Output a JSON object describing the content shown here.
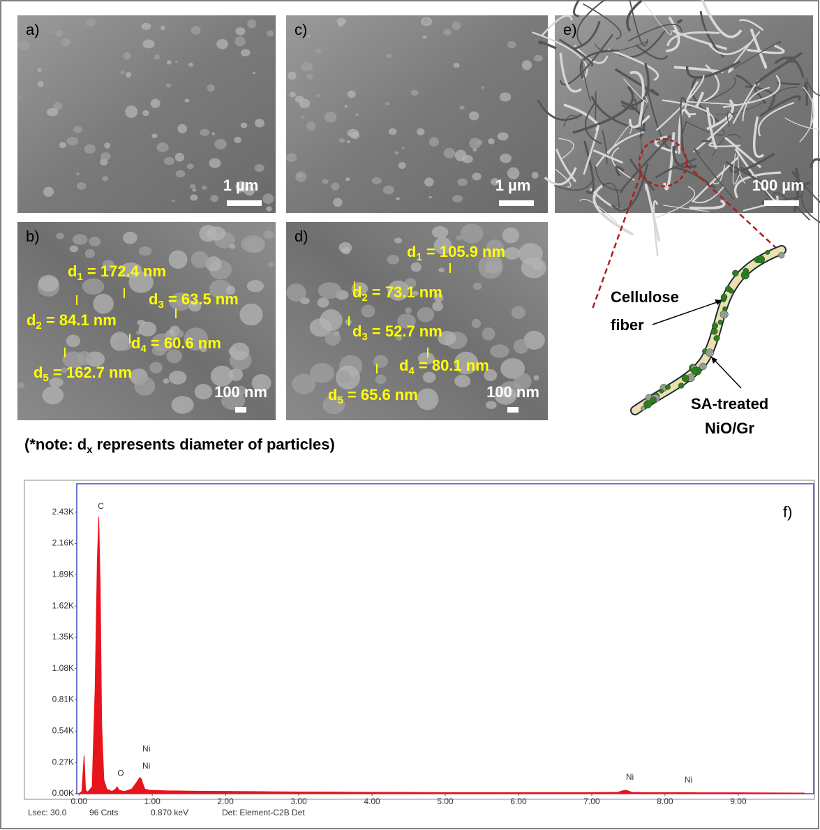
{
  "panels": [
    {
      "label": "a)",
      "scale_bar": "1 µm"
    },
    {
      "label": "b)",
      "scale_bar": "100 nm",
      "diameters": [
        {
          "symbol": "d",
          "sub": "1",
          "text": " = 172.4 nm"
        },
        {
          "symbol": "d",
          "sub": "2",
          "text": " = 84.1 nm"
        },
        {
          "symbol": "d",
          "sub": "3",
          "text": " = 63.5 nm"
        },
        {
          "symbol": "d",
          "sub": "4",
          "text": " = 60.6 nm"
        },
        {
          "symbol": "d",
          "sub": "5",
          "text": " = 162.7 nm"
        }
      ]
    },
    {
      "label": "c)",
      "scale_bar": "1 µm"
    },
    {
      "label": "d)",
      "scale_bar": "100 nm",
      "diameters": [
        {
          "symbol": "d",
          "sub": "1",
          "text": " = 105.9 nm"
        },
        {
          "symbol": "d",
          "sub": "2",
          "text": " = 73.1 nm"
        },
        {
          "symbol": "d",
          "sub": "3",
          "text": " = 52.7 nm"
        },
        {
          "symbol": "d",
          "sub": "4",
          "text": " = 80.1 nm"
        },
        {
          "symbol": "d",
          "sub": "5",
          "text": " = 65.6 nm"
        }
      ]
    },
    {
      "label": "e)",
      "scale_bar": "100 µm"
    }
  ],
  "schematic": {
    "fiber_label": [
      "Cellulose",
      "fiber"
    ],
    "particle_label": [
      "SA-treated",
      "NiO/Gr"
    ]
  },
  "note": {
    "before": "(*note: d",
    "sub": "x",
    "after": " represents diameter of particles)"
  },
  "chart_data": {
    "type": "area",
    "panel_label": "f)",
    "color": "#e8141b",
    "frame_color": "#3b4ab8",
    "x": [
      0.0,
      0.04,
      0.07,
      0.09,
      0.12,
      0.18,
      0.22,
      0.25,
      0.27,
      0.29,
      0.31,
      0.34,
      0.38,
      0.45,
      0.5,
      0.52,
      0.55,
      0.62,
      0.72,
      0.8,
      0.83,
      0.85,
      0.87,
      0.9,
      0.96,
      1.2,
      1.6,
      2.0,
      2.5,
      3.0,
      3.5,
      4.0,
      4.5,
      5.0,
      5.5,
      6.0,
      6.5,
      7.0,
      7.35,
      7.45,
      7.48,
      7.55,
      7.7,
      8.0,
      8.26,
      8.5,
      9.0,
      9.5,
      9.9
    ],
    "values": [
      0,
      20,
      330,
      30,
      15,
      60,
      900,
      2000,
      2390,
      1800,
      600,
      120,
      40,
      20,
      40,
      60,
      30,
      20,
      40,
      110,
      140,
      130,
      90,
      40,
      30,
      25,
      22,
      20,
      18,
      15,
      14,
      12,
      11,
      10,
      10,
      9,
      9,
      10,
      12,
      30,
      28,
      12,
      10,
      9,
      10,
      8,
      8,
      7,
      6
    ],
    "peak_labels": [
      {
        "label": "C",
        "x": 0.3,
        "y": 2476
      },
      {
        "label": "O",
        "x": 0.57,
        "y": 173
      },
      {
        "label": "Ni",
        "x": 0.92,
        "y": 385
      },
      {
        "label": "Ni",
        "x": 0.92,
        "y": 237
      },
      {
        "label": "Ni",
        "x": 7.52,
        "y": 141
      },
      {
        "label": "Ni",
        "x": 8.32,
        "y": 115
      }
    ],
    "xlim": [
      -0.03,
      10.03
    ],
    "ylim": [
      0,
      2675
    ],
    "xticks": [
      {
        "value": 0,
        "label": "0.00"
      },
      {
        "value": 1,
        "label": "1.00"
      },
      {
        "value": 2,
        "label": "2.00"
      },
      {
        "value": 3,
        "label": "3.00"
      },
      {
        "value": 4,
        "label": "4.00"
      },
      {
        "value": 5,
        "label": "5.00"
      },
      {
        "value": 6,
        "label": "6.00"
      },
      {
        "value": 7,
        "label": "7.00"
      },
      {
        "value": 8,
        "label": "8.00"
      },
      {
        "value": 9,
        "label": "9.00"
      }
    ],
    "yticks": [
      {
        "value": 0,
        "label": "0.00K"
      },
      {
        "value": 270,
        "label": "0.27K"
      },
      {
        "value": 540,
        "label": "0.54K"
      },
      {
        "value": 810,
        "label": "0.81K"
      },
      {
        "value": 1080,
        "label": "1.08K"
      },
      {
        "value": 1350,
        "label": "1.35K"
      },
      {
        "value": 1620,
        "label": "1.62K"
      },
      {
        "value": 1890,
        "label": "1.89K"
      },
      {
        "value": 2160,
        "label": "2.16K"
      },
      {
        "value": 2430,
        "label": "2.43K"
      }
    ],
    "footer": [
      "Lsec: 30.0",
      "96 Cnts",
      "0.870 keV",
      "Det: Element-C2B Det"
    ]
  }
}
